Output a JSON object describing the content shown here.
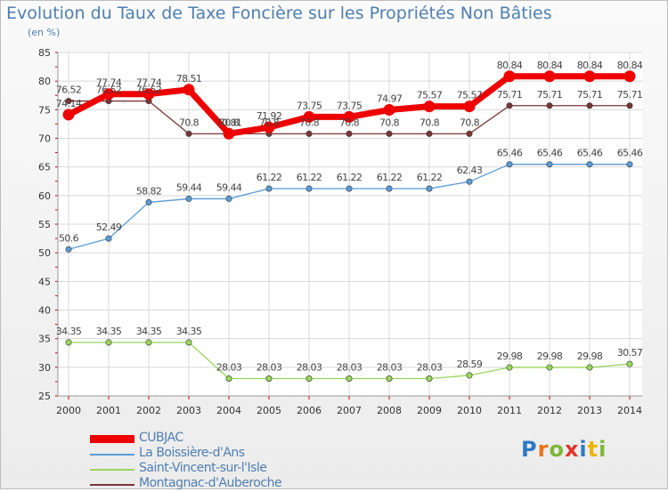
{
  "chart_data": {
    "type": "line",
    "title": "Evolution du Taux de Taxe Foncière sur les Propriétés Non Bâties",
    "ylabel": "(en %)",
    "xlabel": "",
    "categories": [
      "2000",
      "2001",
      "2002",
      "2003",
      "2004",
      "2005",
      "2006",
      "2007",
      "2008",
      "2009",
      "2010",
      "2011",
      "2012",
      "2013",
      "2014"
    ],
    "ylim": [
      25,
      85
    ],
    "yticks": [
      25,
      30,
      35,
      40,
      45,
      50,
      55,
      60,
      65,
      70,
      75,
      80,
      85
    ],
    "grid": true,
    "legend_position": "bottom-left",
    "series": [
      {
        "name": "CUBJAC",
        "color": "#ee0000",
        "values": [
          74.14,
          77.74,
          77.74,
          78.51,
          70.81,
          71.92,
          73.75,
          73.75,
          74.97,
          75.57,
          75.57,
          80.84,
          80.84,
          80.84,
          80.84
        ],
        "labels": [
          "74.14",
          "77.74",
          "77.74",
          "78.51",
          "70.81",
          "71.92",
          "73.75",
          "73.75",
          "74.97",
          "75.57",
          "75.57",
          "80.84",
          "80.84",
          "80.84",
          "80.84"
        ]
      },
      {
        "name": "La Boissière-d'Ans",
        "color": "#5b9bd5",
        "values": [
          50.6,
          52.49,
          58.82,
          59.44,
          59.44,
          61.22,
          61.22,
          61.22,
          61.22,
          61.22,
          62.43,
          65.46,
          65.46,
          65.46,
          65.46
        ],
        "labels": [
          "50.6",
          "52.49",
          "58.82",
          "59.44",
          "59.44",
          "61.22",
          "61.22",
          "61.22",
          "61.22",
          "61.22",
          "62.43",
          "65.46",
          "65.46",
          "65.46",
          "65.46"
        ]
      },
      {
        "name": "Saint-Vincent-sur-l'Isle",
        "color": "#9ad65c",
        "values": [
          34.35,
          34.35,
          34.35,
          34.35,
          28.03,
          28.03,
          28.03,
          28.03,
          28.03,
          28.03,
          28.59,
          29.98,
          29.98,
          29.98,
          30.57
        ],
        "labels": [
          "34.35",
          "34.35",
          "34.35",
          "34.35",
          "28.03",
          "28.03",
          "28.03",
          "28.03",
          "28.03",
          "28.03",
          "28.59",
          "29.98",
          "29.98",
          "29.98",
          "30.57"
        ]
      },
      {
        "name": "Montagnac-d'Auberoche",
        "color": "#7a3535",
        "values": [
          76.52,
          76.52,
          76.52,
          70.8,
          70.8,
          70.8,
          70.8,
          70.8,
          70.8,
          70.8,
          70.8,
          75.71,
          75.71,
          75.71,
          75.71
        ],
        "labels": [
          "76.52",
          "76.52",
          "76.52",
          "70.8",
          "70.8",
          "70.8",
          "70.8",
          "70.8",
          "70.8",
          "70.8",
          "70.8",
          "75.71",
          "75.71",
          "75.71",
          "75.71"
        ]
      }
    ]
  },
  "logo": {
    "text": "Proxiti"
  }
}
